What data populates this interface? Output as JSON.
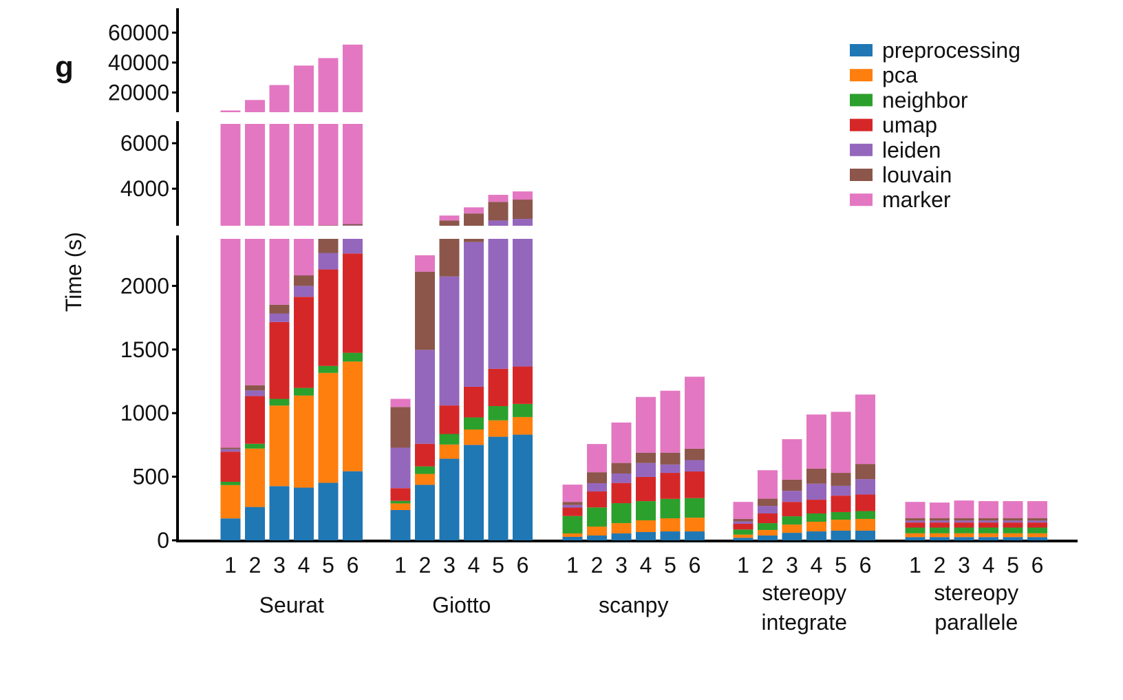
{
  "chart_data": {
    "type": "bar",
    "stacked": true,
    "panel_label": "g",
    "ylabel": "Time (s)",
    "xlabel": "",
    "y_axis_broken": true,
    "y_segments": [
      [
        0,
        2370
      ],
      [
        2370,
        6850
      ],
      [
        6850,
        65000
      ]
    ],
    "yticks": [
      0,
      500,
      1000,
      1500,
      2000,
      4000,
      6000,
      20000,
      40000,
      60000
    ],
    "grid": false,
    "legend_position": "top-right",
    "groups": [
      {
        "label_lines": [
          "Seurat"
        ],
        "categories": [
          "1",
          "2",
          "3",
          "4",
          "5",
          "6"
        ]
      },
      {
        "label_lines": [
          "Giotto"
        ],
        "categories": [
          "1",
          "2",
          "3",
          "4",
          "5",
          "6"
        ]
      },
      {
        "label_lines": [
          "scanpy"
        ],
        "categories": [
          "1",
          "2",
          "3",
          "4",
          "5",
          "6"
        ]
      },
      {
        "label_lines": [
          "stereopy",
          "integrate"
        ],
        "categories": [
          "1",
          "2",
          "3",
          "4",
          "5",
          "6"
        ]
      },
      {
        "label_lines": [
          "stereopy",
          "parallele"
        ],
        "categories": [
          "1",
          "2",
          "3",
          "4",
          "5",
          "6"
        ]
      }
    ],
    "series": [
      {
        "name": "preprocessing",
        "color": "#1f77b4",
        "values": [
          [
            172,
            262,
            426,
            414,
            452,
            543
          ],
          [
            238,
            436,
            641,
            750,
            814,
            831
          ],
          [
            27,
            38,
            54,
            65,
            70,
            70
          ],
          [
            20,
            38,
            59,
            70,
            76,
            76
          ],
          [
            25,
            25,
            25,
            25,
            25,
            25
          ]
        ]
      },
      {
        "name": "pca",
        "color": "#ff7f0e",
        "values": [
          [
            262,
            459,
            633,
            724,
            864,
            862
          ],
          [
            52,
            86,
            112,
            121,
            129,
            138
          ],
          [
            27,
            70,
            81,
            92,
            103,
            108
          ],
          [
            25,
            43,
            65,
            76,
            86,
            92
          ],
          [
            30,
            30,
            30,
            30,
            30,
            30
          ]
        ]
      },
      {
        "name": "neighbor",
        "color": "#2ca02c",
        "values": [
          [
            26,
            38,
            53,
            60,
            55,
            69
          ],
          [
            20,
            59,
            83,
            95,
            112,
            103
          ],
          [
            137,
            151,
            157,
            151,
            153,
            154
          ],
          [
            40,
            54,
            65,
            65,
            60,
            62
          ],
          [
            45,
            45,
            45,
            45,
            45,
            45
          ]
        ]
      },
      {
        "name": "umap",
        "color": "#d62728",
        "values": [
          [
            237,
            375,
            604,
            716,
            758,
            781
          ],
          [
            100,
            178,
            224,
            241,
            293,
            294
          ],
          [
            66,
            125,
            159,
            190,
            204,
            209
          ],
          [
            45,
            76,
            113,
            108,
            129,
            130
          ],
          [
            40,
            40,
            40,
            40,
            40,
            40
          ]
        ]
      },
      {
        "name": "leiden",
        "color": "#9467bd",
        "values": [
          [
            19,
            44,
            67,
            86,
            130,
            135
          ],
          [
            318,
            738,
            1014,
            1138,
            1252,
            1304
          ],
          [
            21,
            65,
            74,
            110,
            66,
            89
          ],
          [
            18,
            59,
            87,
            126,
            77,
            121
          ],
          [
            15,
            15,
            15,
            15,
            15,
            15
          ]
        ]
      },
      {
        "name": "louvain",
        "color": "#8c564b",
        "values": [
          [
            13,
            41,
            69,
            83,
            131,
            60
          ],
          [
            320,
            615,
            526,
            565,
            820,
            850
          ],
          [
            24,
            86,
            83,
            81,
            93,
            90
          ],
          [
            20,
            57,
            88,
            118,
            102,
            119
          ],
          [
            20,
            20,
            20,
            20,
            20,
            20
          ]
        ]
      },
      {
        "name": "marker",
        "color": "#e377c2",
        "values": [
          [
            7271,
            13781,
            23148,
            35917,
            40610,
            49550
          ],
          [
            64,
            129,
            220,
            270,
            310,
            360
          ],
          [
            136,
            222,
            318,
            438,
            487,
            566
          ],
          [
            134,
            224,
            318,
            426,
            480,
            546
          ],
          [
            127,
            122,
            138,
            133,
            133,
            133
          ]
        ]
      }
    ]
  }
}
